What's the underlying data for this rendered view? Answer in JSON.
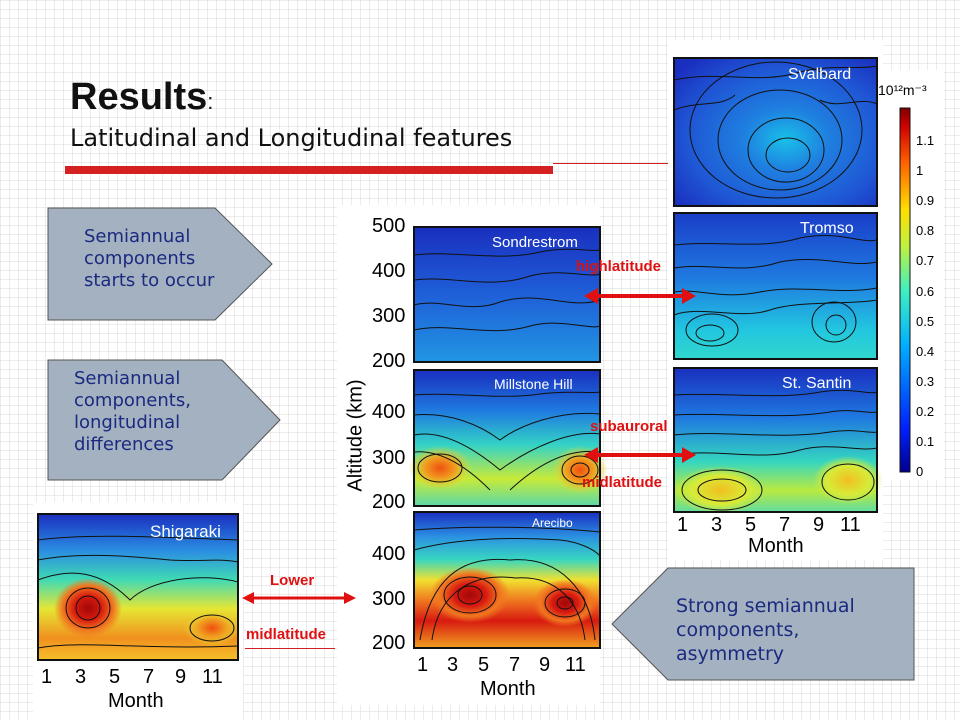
{
  "slide": {
    "title": "Results",
    "title_colon": ":",
    "subtitle": "Latitudinal and Longitudinal features"
  },
  "callouts": {
    "top_left": "Semiannual components starts to occur",
    "mid_left": "Semiannual components, longitudinal differences",
    "bottom_right": "Strong semiannual components, asymmetry"
  },
  "arrow_labels": {
    "high_latitude": "highlatitude",
    "subauroral": "subauroral",
    "midlatitude_right": "midlatitude",
    "lower": "Lower",
    "midlatitude_left": "midlatitude"
  },
  "sites": {
    "svalbard": "Svalbard",
    "tromso": "Tromso",
    "st_santin": "St. Santin",
    "sondrestrom": "Sondrestrom",
    "millstone_hill": "Millstone Hill",
    "arecibo": "Arecibo",
    "shigaraki": "Shigaraki"
  },
  "axes": {
    "y_title": "Altitude (km)",
    "x_title": "Month",
    "x_ticks": [
      "1",
      "3",
      "5",
      "7",
      "9",
      "11"
    ],
    "y_ticks_top": [
      "500",
      "400",
      "300",
      "200"
    ],
    "y_ticks_other": [
      "400",
      "300",
      "200"
    ]
  },
  "colorbar": {
    "unit": "10¹²m⁻³",
    "ticks": [
      "1.1",
      "1",
      "0.9",
      "0.8",
      "0.7",
      "0.6",
      "0.5",
      "0.4",
      "0.3",
      "0.2",
      "0.1",
      "0"
    ]
  },
  "colors": {
    "accent_red": "#e01010",
    "title_bar": "#d42020",
    "callout_fill": "#a4b1c0",
    "callout_text": "#1a2a80"
  }
}
